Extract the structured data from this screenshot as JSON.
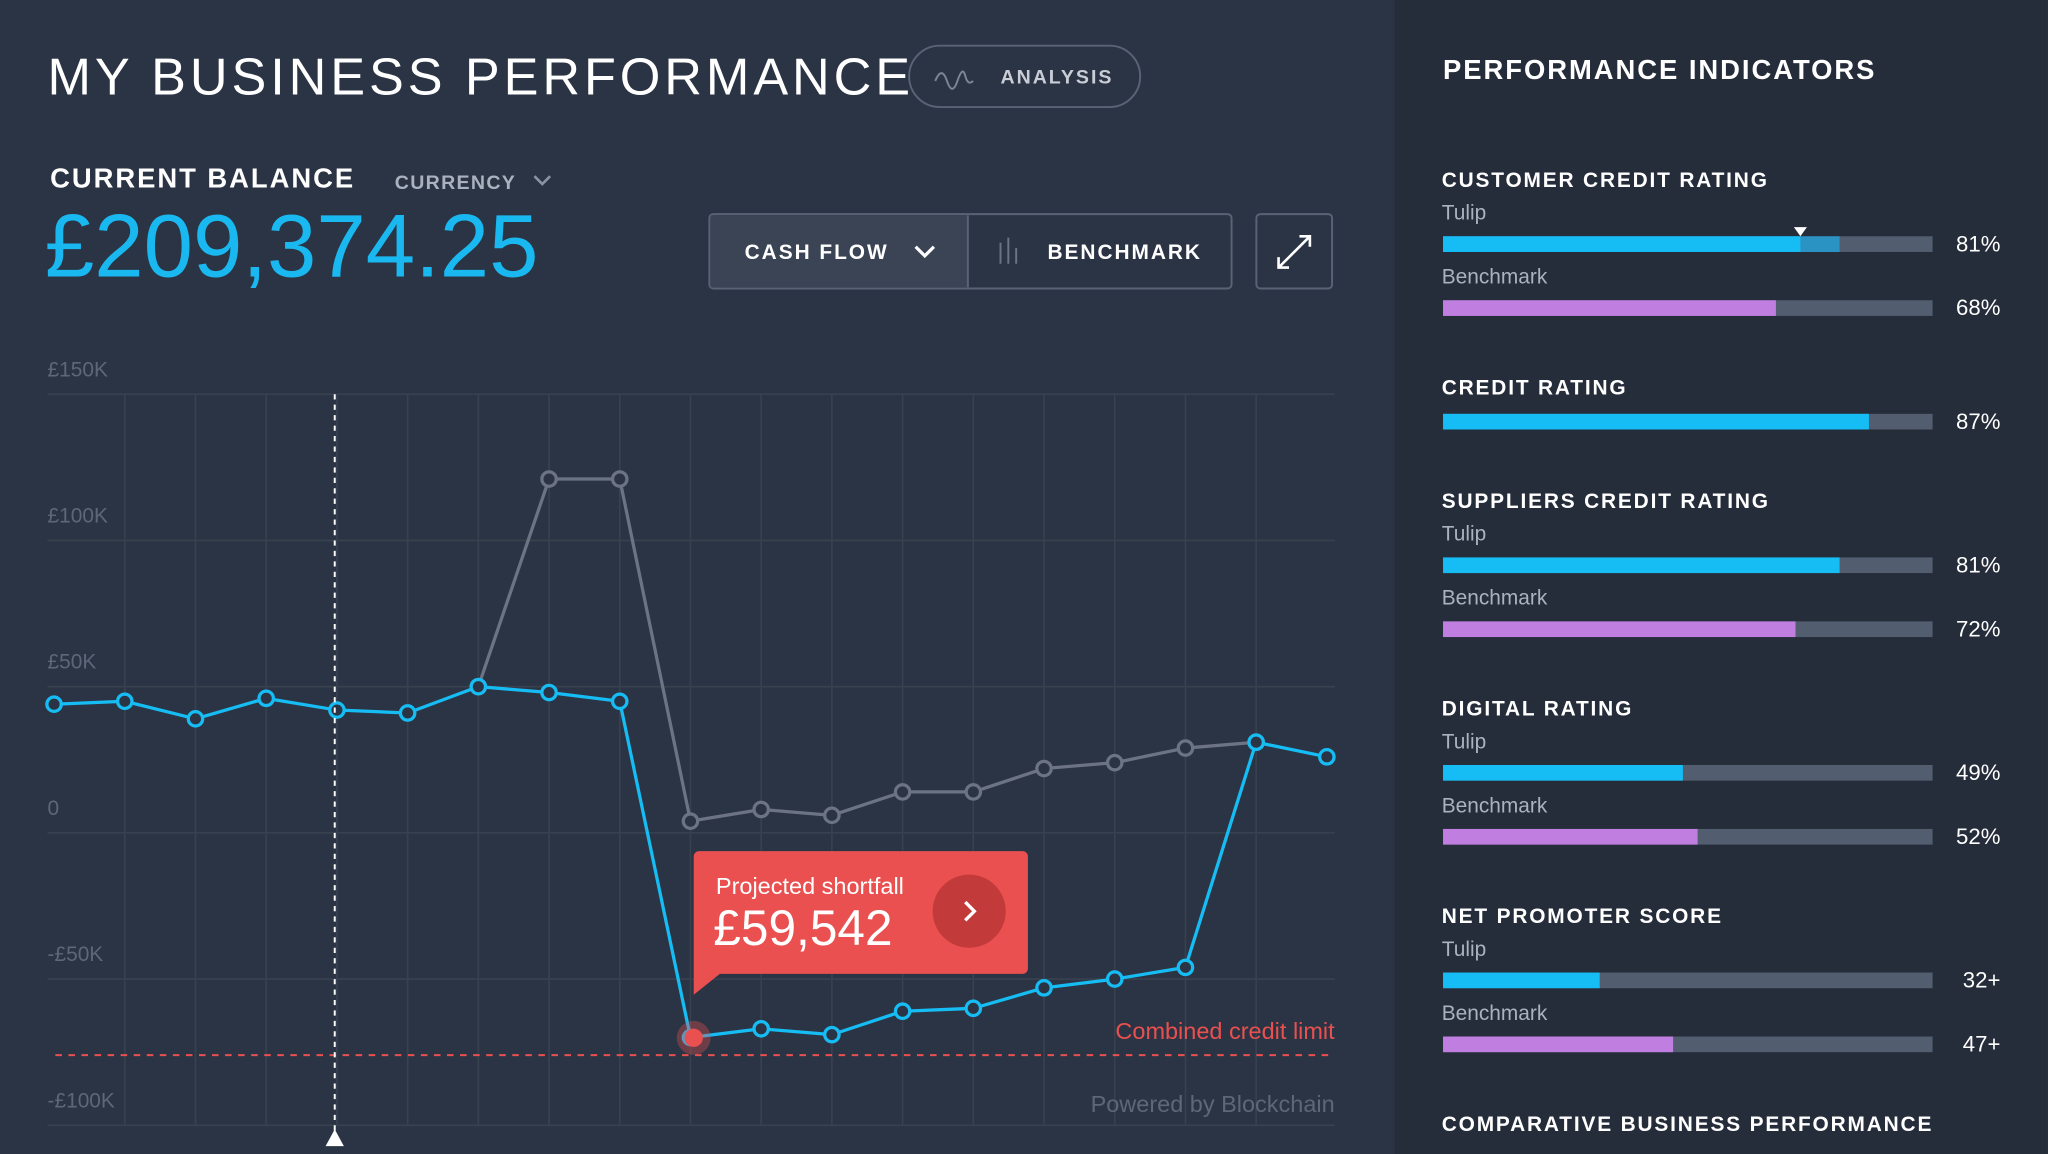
{
  "header": {
    "title": "MY BUSINESS PERFORMANCE",
    "analysis_button": "ANALYSIS"
  },
  "balance": {
    "label": "CURRENT BALANCE",
    "currency": "CURRENCY",
    "amount": "£209,374.25"
  },
  "controls": {
    "cash_flow": "CASH FLOW",
    "benchmark": "BENCHMARK"
  },
  "chart": {
    "type": "line",
    "ylim": [
      -100000,
      150000
    ],
    "yticks": [
      {
        "value": 150000,
        "label": "£150K"
      },
      {
        "value": 100000,
        "label": "£100K"
      },
      {
        "value": 50000,
        "label": "£50K"
      },
      0,
      {
        "value": -50000,
        "label": "-£50K"
      },
      {
        "value": -100000,
        "label": "-£100K"
      }
    ],
    "grid": true,
    "series": [
      {
        "name": "Tulip",
        "color": "#16bdf4",
        "values": [
          44000,
          45000,
          39000,
          46000,
          42000,
          41000,
          50000,
          48000,
          45000,
          -70000,
          -67000,
          -69000,
          -61000,
          -60000,
          -53000,
          -50000,
          -46000,
          31000,
          26000
        ]
      },
      {
        "name": "Benchmark",
        "color": "#6b7384",
        "values": [
          null,
          null,
          null,
          null,
          null,
          null,
          50000,
          121000,
          121000,
          4000,
          8000,
          6000,
          14000,
          14000,
          22000,
          24000,
          29000,
          31000,
          null
        ]
      }
    ],
    "callout": {
      "label": "Projected shortfall",
      "amount": "£59,542"
    },
    "credit_limit": {
      "value": -76000,
      "label": "Combined credit limit"
    },
    "footer": "Powered by Blockchain"
  },
  "indicators": {
    "title": "PERFORMANCE INDICATORS",
    "sections": [
      {
        "title": "CUSTOMER CREDIT RATING",
        "rows": [
          {
            "name": "Tulip",
            "value": 81,
            "value_label": "81%",
            "marker": 73
          },
          {
            "name": "Benchmark",
            "value": 68,
            "value_label": "68%"
          }
        ]
      },
      {
        "title": "CREDIT RATING",
        "rows": [
          {
            "value": 87,
            "value_label": "87%"
          }
        ]
      },
      {
        "title": "SUPPLIERS CREDIT RATING",
        "rows": [
          {
            "name": "Tulip",
            "value": 81,
            "value_label": "81%"
          },
          {
            "name": "Benchmark",
            "value": 72,
            "value_label": "72%"
          }
        ]
      },
      {
        "title": "DIGITAL RATING",
        "rows": [
          {
            "name": "Tulip",
            "value": 49,
            "value_label": "49%"
          },
          {
            "name": "Benchmark",
            "value": 52,
            "value_label": "52%"
          }
        ]
      },
      {
        "title": "NET PROMOTER SCORE",
        "rows": [
          {
            "name": "Tulip",
            "value": 32,
            "value_label": "32+"
          },
          {
            "name": "Benchmark",
            "value": 47,
            "value_label": "47+"
          }
        ]
      },
      {
        "title": "COMPARATIVE BUSINESS PERFORMANCE",
        "rows": []
      }
    ]
  }
}
